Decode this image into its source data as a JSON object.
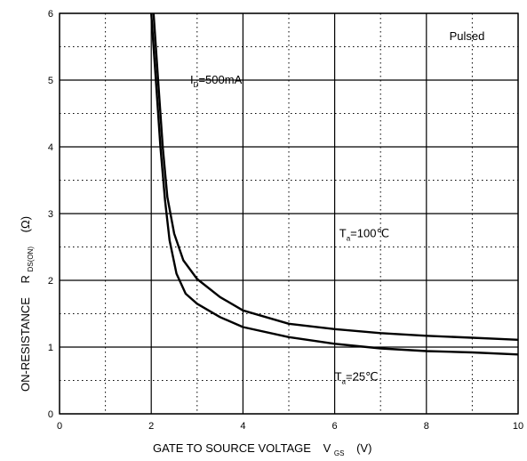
{
  "chart_data": {
    "type": "line",
    "title": "",
    "xlabel": {
      "main": "GATE TO SOURCE VOLTAGE",
      "symbol": "V",
      "subscript": "GS",
      "unit": "(V)"
    },
    "ylabel": {
      "main": "ON-RESISTANCE",
      "symbol": "R",
      "subscript": "DS(ON)",
      "unit": "(Ω)"
    },
    "xlim": [
      0,
      10
    ],
    "ylim": [
      0,
      6
    ],
    "x_major_ticks": [
      0,
      2,
      4,
      6,
      8,
      10
    ],
    "x_tick_labels": [
      "0",
      "2",
      "4",
      "6",
      "8",
      "10"
    ],
    "x_minor_ticks": [
      1,
      3,
      5,
      7,
      9
    ],
    "y_major_ticks": [
      0,
      1,
      2,
      3,
      4,
      5,
      6
    ],
    "y_tick_labels": [
      "0",
      "1",
      "2",
      "3",
      "4",
      "5",
      "6"
    ],
    "y_minor_ticks": [
      0.5,
      1.5,
      2.5,
      3.5,
      4.5,
      5.5
    ],
    "grid": true,
    "annotations": [
      {
        "id": "condition",
        "main": "Pulsed",
        "sub": "",
        "suffix": "",
        "at": [
          8.5,
          5.6
        ]
      },
      {
        "id": "drain-current",
        "main": "I",
        "sub": "D",
        "suffix": "=500mA",
        "at": [
          2.85,
          4.95
        ]
      },
      {
        "id": "temp-100",
        "main": "T",
        "sub": "a",
        "suffix": "=100℃",
        "at": [
          6.1,
          2.65
        ]
      },
      {
        "id": "temp-25",
        "main": "T",
        "sub": "a",
        "suffix": "=25℃",
        "at": [
          6.0,
          0.5
        ]
      }
    ],
    "series": [
      {
        "id": "ta-100",
        "x": [
          2.05,
          2.15,
          2.25,
          2.35,
          2.5,
          2.7,
          3.0,
          3.5,
          4.0,
          5.0,
          6.0,
          7.0,
          8.0,
          9.0,
          10.0
        ],
        "y": [
          6.0,
          5.0,
          4.0,
          3.25,
          2.7,
          2.3,
          2.02,
          1.75,
          1.55,
          1.35,
          1.27,
          1.21,
          1.17,
          1.14,
          1.11
        ]
      },
      {
        "id": "ta-25",
        "x": [
          2.0,
          2.1,
          2.2,
          2.3,
          2.4,
          2.55,
          2.75,
          3.0,
          3.5,
          4.0,
          5.0,
          6.0,
          7.0,
          8.0,
          9.0,
          10.0
        ],
        "y": [
          6.0,
          5.0,
          4.0,
          3.2,
          2.6,
          2.1,
          1.8,
          1.65,
          1.45,
          1.3,
          1.15,
          1.05,
          0.98,
          0.94,
          0.92,
          0.89
        ]
      }
    ]
  }
}
